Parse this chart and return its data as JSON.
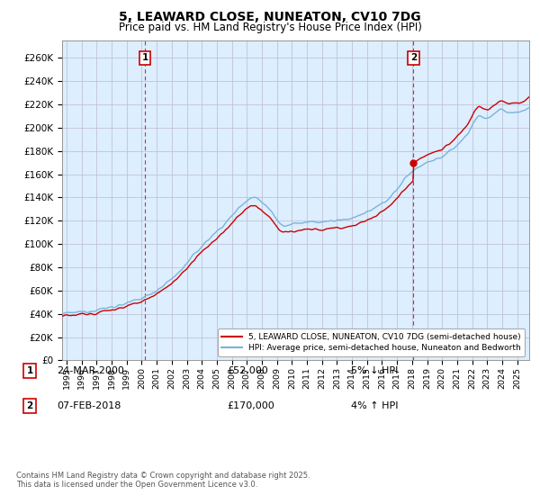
{
  "title": "5, LEAWARD CLOSE, NUNEATON, CV10 7DG",
  "subtitle": "Price paid vs. HM Land Registry's House Price Index (HPI)",
  "title_fontsize": 10,
  "subtitle_fontsize": 8.5,
  "ylabel_ticks": [
    "£0",
    "£20K",
    "£40K",
    "£60K",
    "£80K",
    "£100K",
    "£120K",
    "£140K",
    "£160K",
    "£180K",
    "£200K",
    "£220K",
    "£240K",
    "£260K"
  ],
  "ytick_values": [
    0,
    20000,
    40000,
    60000,
    80000,
    100000,
    120000,
    140000,
    160000,
    180000,
    200000,
    220000,
    240000,
    260000
  ],
  "ylim": [
    0,
    275000
  ],
  "xlim_start": 1994.7,
  "xlim_end": 2025.8,
  "xtick_years": [
    1995,
    1996,
    1997,
    1998,
    1999,
    2000,
    2001,
    2002,
    2003,
    2004,
    2005,
    2006,
    2007,
    2008,
    2009,
    2010,
    2011,
    2012,
    2013,
    2014,
    2015,
    2016,
    2017,
    2018,
    2019,
    2020,
    2021,
    2022,
    2023,
    2024,
    2025
  ],
  "sale1_x": 2000.22,
  "sale1_y": 52000,
  "sale1_label": "1",
  "sale2_x": 2018.09,
  "sale2_y": 170000,
  "sale2_label": "2",
  "hpi_line_color": "#7ab4d8",
  "price_line_color": "#cc0000",
  "vline_color": "#cc0000",
  "chart_bg_color": "#ddeeff",
  "legend_price_label": "5, LEAWARD CLOSE, NUNEATON, CV10 7DG (semi-detached house)",
  "legend_hpi_label": "HPI: Average price, semi-detached house, Nuneaton and Bedworth",
  "annotation1_date": "24-MAR-2000",
  "annotation1_price": "£52,000",
  "annotation1_hpi": "5% ↓ HPI",
  "annotation2_date": "07-FEB-2018",
  "annotation2_price": "£170,000",
  "annotation2_hpi": "4% ↑ HPI",
  "footer": "Contains HM Land Registry data © Crown copyright and database right 2025.\nThis data is licensed under the Open Government Licence v3.0.",
  "background_color": "#ffffff",
  "grid_color": "#bbbbcc"
}
